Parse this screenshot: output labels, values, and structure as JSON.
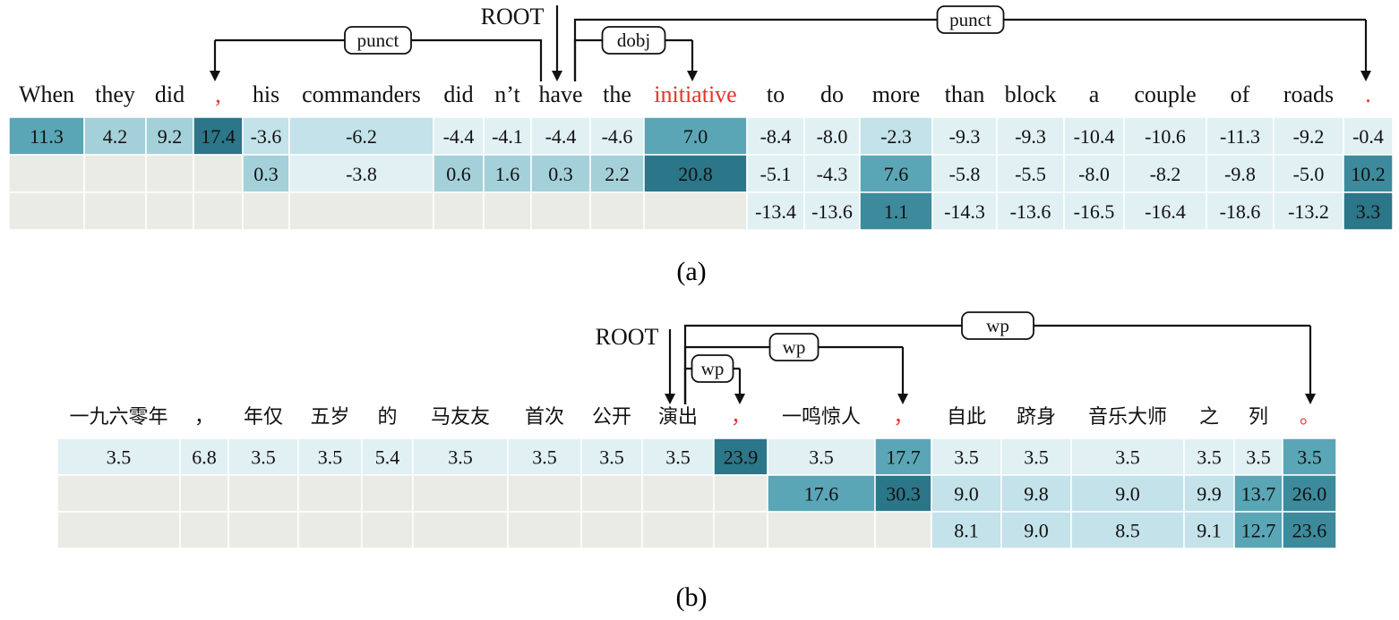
{
  "colors": {
    "empty_cell": "#ebebe6",
    "grid": "#ffffff",
    "scale": [
      "#e0f0f3",
      "#c3e2e9",
      "#a4d0d9",
      "#7bbcc8",
      "#5aa6b6",
      "#3c8a9c",
      "#2b7688"
    ],
    "red_word": "#e8322c",
    "arc": "#111111"
  },
  "panel_a": {
    "caption": "(a)",
    "root_label": "ROOT",
    "tokens": [
      {
        "text": "When"
      },
      {
        "text": "they"
      },
      {
        "text": "did"
      },
      {
        "text": ",",
        "red": true
      },
      {
        "text": "his"
      },
      {
        "text": "commanders"
      },
      {
        "text": "did"
      },
      {
        "text": "n’t"
      },
      {
        "text": "have"
      },
      {
        "text": "the"
      },
      {
        "text": "initiative",
        "red": true
      },
      {
        "text": "to"
      },
      {
        "text": "do"
      },
      {
        "text": "more"
      },
      {
        "text": "than"
      },
      {
        "text": "block"
      },
      {
        "text": "a"
      },
      {
        "text": "couple"
      },
      {
        "text": "of"
      },
      {
        "text": "roads"
      },
      {
        "text": ".",
        "red": true
      }
    ],
    "rows": [
      [
        "11.3",
        "4.2",
        "9.2",
        "17.4",
        "-3.6",
        "-6.2",
        "-4.4",
        "-4.1",
        "-4.4",
        "-4.6",
        "7.0",
        "-8.4",
        "-8.0",
        "-2.3",
        "-9.3",
        "-9.3",
        "-10.4",
        "-10.6",
        "-11.3",
        "-9.2",
        "-0.4"
      ],
      [
        null,
        null,
        null,
        null,
        "0.3",
        "-3.8",
        "0.6",
        "1.6",
        "0.3",
        "2.2",
        "20.8",
        "-5.1",
        "-4.3",
        "7.6",
        "-5.8",
        "-5.5",
        "-8.0",
        "-8.2",
        "-9.8",
        "-5.0",
        "10.2"
      ],
      [
        null,
        null,
        null,
        null,
        null,
        null,
        null,
        null,
        null,
        null,
        null,
        "-13.4",
        "-13.6",
        "1.1",
        "-14.3",
        "-13.6",
        "-16.5",
        "-16.4",
        "-18.6",
        "-13.2",
        "3.3"
      ]
    ],
    "shades": [
      [
        4,
        2,
        2,
        6,
        1,
        1,
        0,
        0,
        0,
        0,
        4,
        0,
        0,
        1,
        0,
        0,
        0,
        0,
        0,
        0,
        0
      ],
      [
        null,
        null,
        null,
        null,
        2,
        0,
        2,
        2,
        2,
        2,
        6,
        0,
        0,
        4,
        0,
        0,
        0,
        0,
        0,
        0,
        5
      ],
      [
        null,
        null,
        null,
        null,
        null,
        null,
        null,
        null,
        null,
        null,
        null,
        0,
        0,
        5,
        0,
        0,
        0,
        0,
        0,
        0,
        6
      ]
    ],
    "arcs": [
      {
        "label": "punct",
        "from": 8,
        "to": 3
      },
      {
        "label": "dobj",
        "from": 8,
        "to": 10
      },
      {
        "label": "punct",
        "from": 8,
        "to": 20
      }
    ]
  },
  "panel_b": {
    "caption": "(b)",
    "root_label": "ROOT",
    "tokens": [
      {
        "text": "一九六零年"
      },
      {
        "text": "，"
      },
      {
        "text": "年仅"
      },
      {
        "text": "五岁"
      },
      {
        "text": "的"
      },
      {
        "text": "马友友"
      },
      {
        "text": "首次"
      },
      {
        "text": "公开"
      },
      {
        "text": "演出"
      },
      {
        "text": "，",
        "red": true
      },
      {
        "text": "一鸣惊人"
      },
      {
        "text": "，",
        "red": true
      },
      {
        "text": "自此"
      },
      {
        "text": "跻身"
      },
      {
        "text": "音乐大师"
      },
      {
        "text": "之"
      },
      {
        "text": "列"
      },
      {
        "text": "。",
        "red": true
      }
    ],
    "rows": [
      [
        "3.5",
        "6.8",
        "3.5",
        "3.5",
        "5.4",
        "3.5",
        "3.5",
        "3.5",
        "3.5",
        "23.9",
        "3.5",
        "17.7",
        "3.5",
        "3.5",
        "3.5",
        "3.5",
        "3.5",
        "3.5"
      ],
      [
        null,
        null,
        null,
        null,
        null,
        null,
        null,
        null,
        null,
        null,
        "17.6",
        "30.3",
        "9.0",
        "9.8",
        "9.0",
        "9.9",
        "13.7",
        "26.0"
      ],
      [
        null,
        null,
        null,
        null,
        null,
        null,
        null,
        null,
        null,
        null,
        null,
        null,
        "8.1",
        "9.0",
        "8.5",
        "9.1",
        "12.7",
        "23.6"
      ]
    ],
    "shades": [
      [
        0,
        0,
        0,
        0,
        0,
        0,
        0,
        0,
        0,
        6,
        0,
        4,
        0,
        0,
        0,
        0,
        0,
        4
      ],
      [
        null,
        null,
        null,
        null,
        null,
        null,
        null,
        null,
        null,
        null,
        4,
        6,
        1,
        1,
        1,
        1,
        4,
        5
      ],
      [
        null,
        null,
        null,
        null,
        null,
        null,
        null,
        null,
        null,
        null,
        null,
        null,
        1,
        1,
        1,
        1,
        4,
        5
      ]
    ],
    "arcs": [
      {
        "label": "wp",
        "from": 8,
        "to": 9
      },
      {
        "label": "wp",
        "from": 8,
        "to": 11
      },
      {
        "label": "wp",
        "from": 8,
        "to": 17
      }
    ]
  }
}
